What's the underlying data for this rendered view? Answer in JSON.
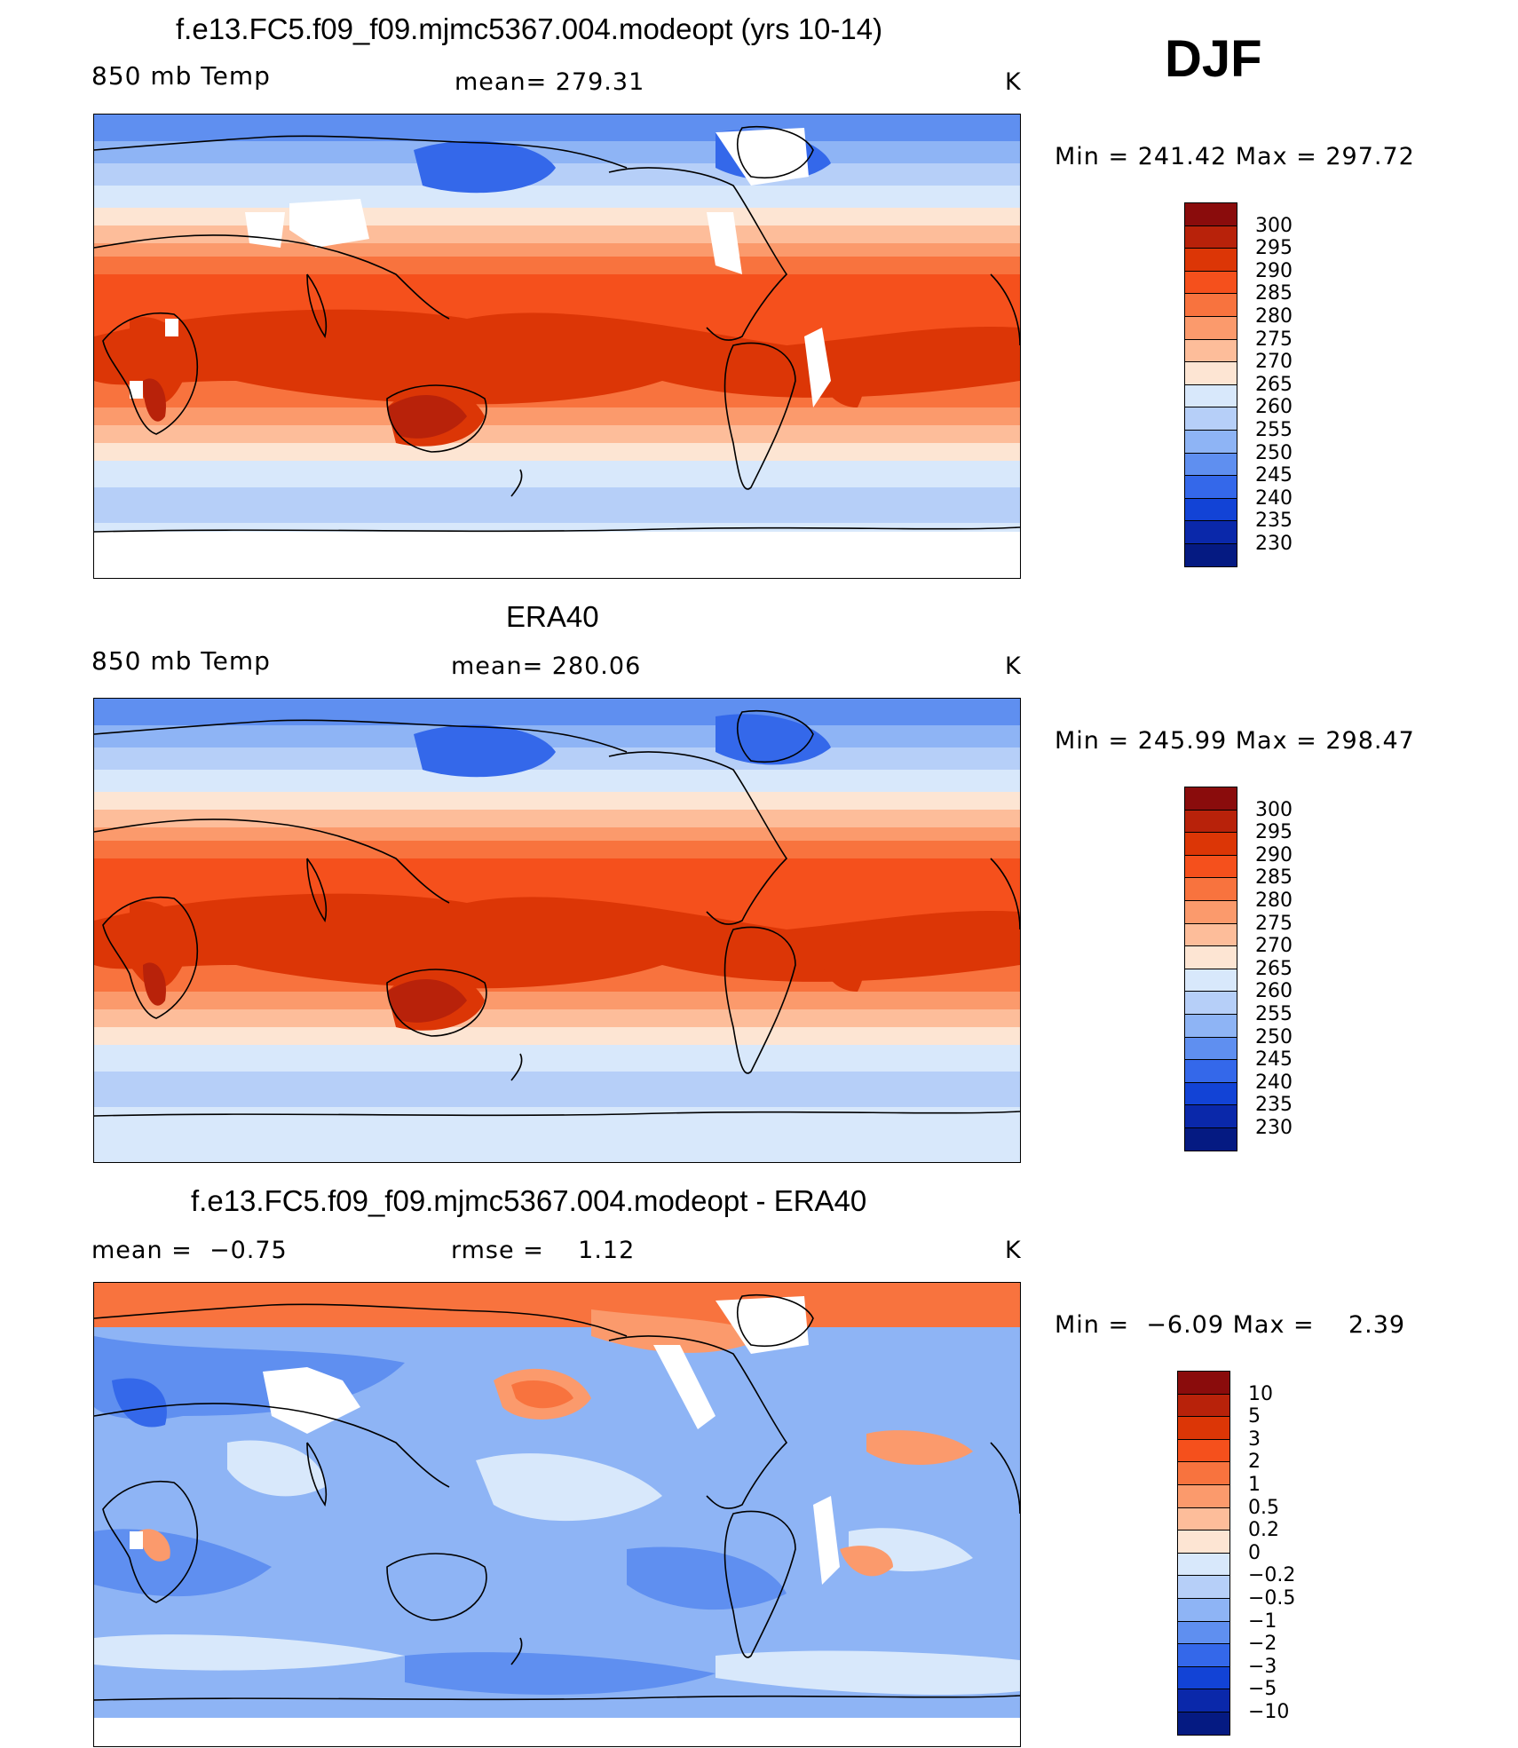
{
  "season": "DJF",
  "panels": [
    {
      "title": "f.e13.FC5.f09_f09.mjmc5367.004.modeopt (yrs 10-14)",
      "left_label": "850 mb Temp",
      "center_label": "mean= 279.31",
      "units": "K",
      "minmax": "Min = 241.42 Max = 297.72",
      "kind": "model"
    },
    {
      "title": "ERA40",
      "left_label": "850 mb Temp",
      "center_label": "mean= 280.06",
      "units": "K",
      "minmax": "Min = 245.99 Max = 298.47",
      "kind": "obs"
    },
    {
      "title": "f.e13.FC5.f09_f09.mjmc5367.004.modeopt - ERA40",
      "left_label": "mean =  −0.75",
      "center_label": "rmse =    1.12",
      "units": "K",
      "minmax": "Min =  −6.09 Max =    2.39",
      "kind": "diff"
    }
  ],
  "colorbars": {
    "temp": {
      "labels": [
        "300",
        "295",
        "290",
        "285",
        "280",
        "275",
        "270",
        "265",
        "260",
        "255",
        "250",
        "245",
        "240",
        "235",
        "230"
      ],
      "colors": [
        "#8a0c0c",
        "#b8220a",
        "#dc3606",
        "#f5501c",
        "#f8733e",
        "#fb9a6c",
        "#fdbd9a",
        "#fde5d3",
        "#d8e8fb",
        "#b6cff8",
        "#8eb4f5",
        "#5f8ff0",
        "#3468ea",
        "#1243d6",
        "#0a28aa",
        "#051a82"
      ]
    },
    "diff": {
      "labels": [
        "10",
        "5",
        "3",
        "2",
        "1",
        "0.5",
        "0.2",
        "0",
        "−0.2",
        "−0.5",
        "−1",
        "−2",
        "−3",
        "−5",
        "−10"
      ],
      "colors": [
        "#8a0c0c",
        "#b8220a",
        "#dc3606",
        "#f5501c",
        "#f8733e",
        "#fb9a6c",
        "#fdbd9a",
        "#fde5d3",
        "#d8e8fb",
        "#b6cff8",
        "#8eb4f5",
        "#5f8ff0",
        "#3468ea",
        "#1243d6",
        "#0a28aa",
        "#051a82"
      ]
    }
  },
  "map_data": {
    "projection": "cylindrical-equidistant",
    "central_longitude": 180,
    "variable": "850 mb Temp"
  }
}
